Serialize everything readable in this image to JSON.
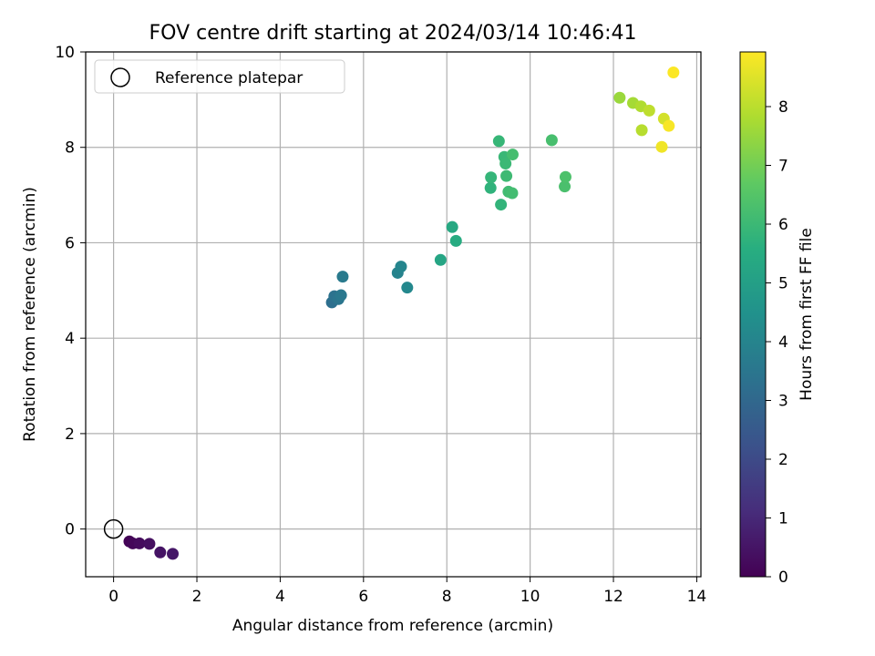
{
  "chart_data": {
    "type": "scatter",
    "title": "FOV centre drift starting at 2024/03/14 10:46:41",
    "xlabel": "Angular distance from reference (arcmin)",
    "ylabel": "Rotation from reference (arcmin)",
    "xlim": [
      -0.67,
      14.1
    ],
    "ylim": [
      -1.0,
      10.0
    ],
    "xticks": [
      0,
      2,
      4,
      6,
      8,
      10,
      12,
      14
    ],
    "yticks": [
      0,
      2,
      4,
      6,
      8,
      10
    ],
    "grid": true,
    "legend": {
      "placement": "top-left",
      "entries": [
        "Reference platepar"
      ]
    },
    "reference_point": {
      "x": 0,
      "y": 0,
      "label": "Reference platepar"
    },
    "colorbar": {
      "label": "Hours from first FF file",
      "colormap": "viridis",
      "range": [
        0,
        8.93
      ],
      "ticks": [
        0,
        1,
        2,
        3,
        4,
        5,
        6,
        7,
        8
      ]
    },
    "series": [
      {
        "name": "FOV centre drift",
        "points": [
          {
            "x": 0.38,
            "y": -0.26,
            "hours": 0.05
          },
          {
            "x": 0.46,
            "y": -0.3,
            "hours": 0.15
          },
          {
            "x": 0.62,
            "y": -0.3,
            "hours": 0.25
          },
          {
            "x": 0.86,
            "y": -0.31,
            "hours": 0.35
          },
          {
            "x": 1.12,
            "y": -0.49,
            "hours": 0.45
          },
          {
            "x": 1.42,
            "y": -0.52,
            "hours": 0.55
          },
          {
            "x": 5.24,
            "y": 4.75,
            "hours": 3.25
          },
          {
            "x": 5.3,
            "y": 4.88,
            "hours": 3.35
          },
          {
            "x": 5.4,
            "y": 4.82,
            "hours": 3.45
          },
          {
            "x": 5.46,
            "y": 4.9,
            "hours": 3.55
          },
          {
            "x": 5.5,
            "y": 5.29,
            "hours": 3.65
          },
          {
            "x": 6.82,
            "y": 5.37,
            "hours": 3.95
          },
          {
            "x": 6.9,
            "y": 5.5,
            "hours": 4.05
          },
          {
            "x": 7.05,
            "y": 5.06,
            "hours": 4.15
          },
          {
            "x": 7.85,
            "y": 5.64,
            "hours": 5.25
          },
          {
            "x": 8.13,
            "y": 6.33,
            "hours": 5.35
          },
          {
            "x": 8.22,
            "y": 6.04,
            "hours": 5.45
          },
          {
            "x": 9.05,
            "y": 7.15,
            "hours": 5.75
          },
          {
            "x": 9.06,
            "y": 7.37,
            "hours": 5.85
          },
          {
            "x": 9.25,
            "y": 8.13,
            "hours": 5.9
          },
          {
            "x": 9.3,
            "y": 6.8,
            "hours": 5.8
          },
          {
            "x": 9.38,
            "y": 7.8,
            "hours": 5.95
          },
          {
            "x": 9.41,
            "y": 7.66,
            "hours": 6.0
          },
          {
            "x": 9.43,
            "y": 7.4,
            "hours": 6.05
          },
          {
            "x": 9.48,
            "y": 7.07,
            "hours": 6.1
          },
          {
            "x": 9.57,
            "y": 7.04,
            "hours": 6.15
          },
          {
            "x": 9.58,
            "y": 7.85,
            "hours": 6.2
          },
          {
            "x": 10.52,
            "y": 8.15,
            "hours": 6.25
          },
          {
            "x": 10.83,
            "y": 7.18,
            "hours": 6.3
          },
          {
            "x": 10.85,
            "y": 7.38,
            "hours": 6.35
          },
          {
            "x": 12.15,
            "y": 9.04,
            "hours": 7.55
          },
          {
            "x": 12.47,
            "y": 8.93,
            "hours": 7.7
          },
          {
            "x": 12.66,
            "y": 8.86,
            "hours": 7.85
          },
          {
            "x": 12.68,
            "y": 8.36,
            "hours": 7.95
          },
          {
            "x": 12.86,
            "y": 8.77,
            "hours": 8.05
          },
          {
            "x": 13.16,
            "y": 8.01,
            "hours": 8.75
          },
          {
            "x": 13.21,
            "y": 8.6,
            "hours": 8.35
          },
          {
            "x": 13.33,
            "y": 8.45,
            "hours": 8.85
          },
          {
            "x": 13.44,
            "y": 9.57,
            "hours": 8.9
          }
        ]
      }
    ]
  }
}
